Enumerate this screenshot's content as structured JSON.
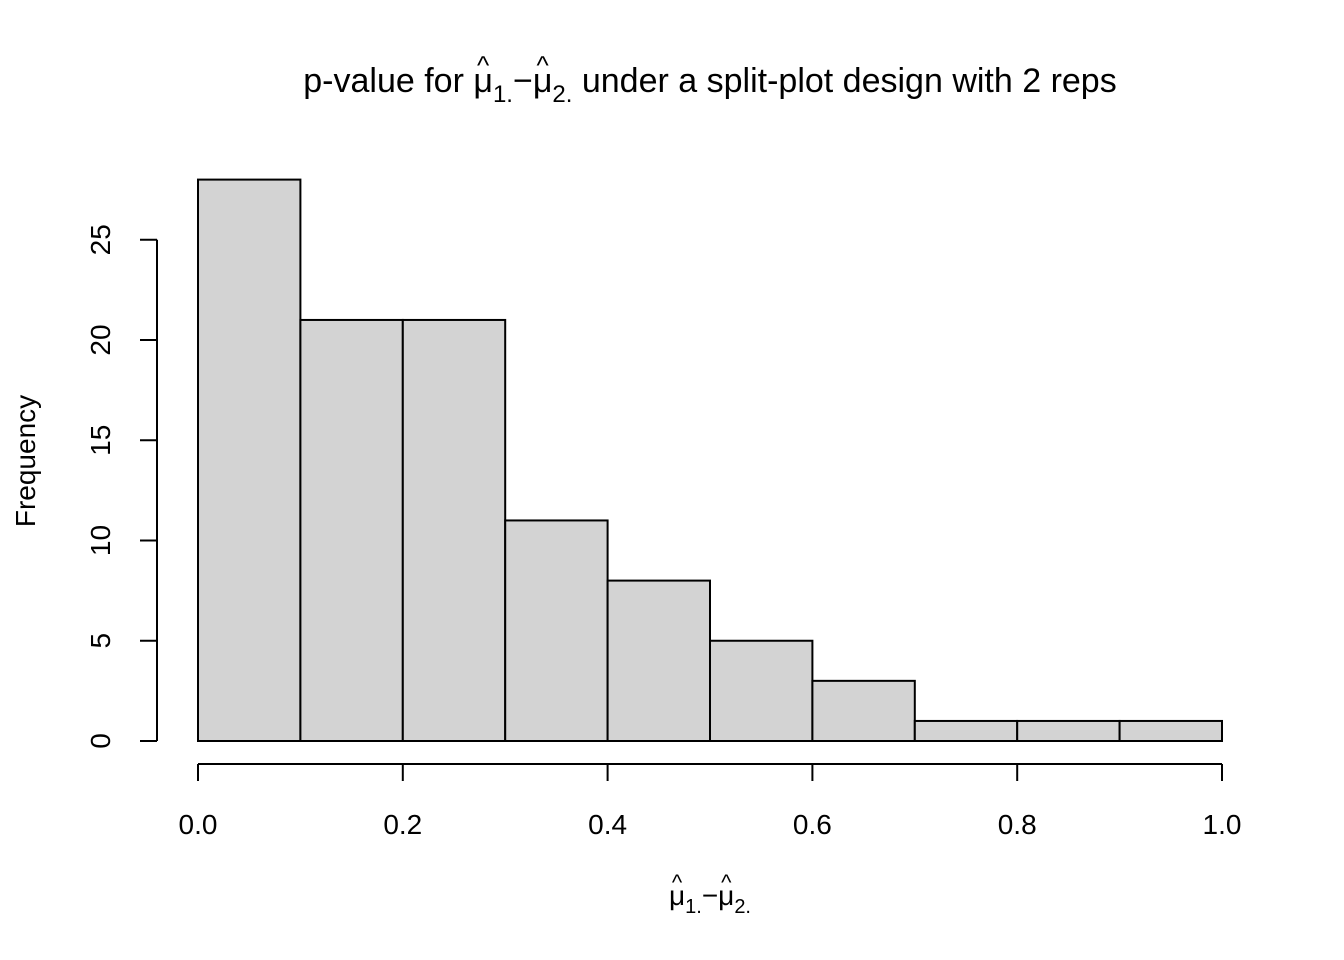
{
  "chart_data": {
    "type": "bar",
    "subtype": "histogram",
    "title": {
      "prefix": "p-value for ",
      "expr": {
        "mu": "μ",
        "hat": "^",
        "sub1": "1.",
        "minus": "−",
        "sub2": "2."
      },
      "suffix": " under a split-plot design with 2 reps"
    },
    "xlabel": {
      "mu": "μ",
      "hat": "^",
      "sub1": "1.",
      "minus": "−",
      "sub2": "2."
    },
    "ylabel": "Frequency",
    "bins": [
      {
        "from": 0.0,
        "to": 0.1,
        "count": 28
      },
      {
        "from": 0.1,
        "to": 0.2,
        "count": 21
      },
      {
        "from": 0.2,
        "to": 0.3,
        "count": 21
      },
      {
        "from": 0.3,
        "to": 0.4,
        "count": 11
      },
      {
        "from": 0.4,
        "to": 0.5,
        "count": 8
      },
      {
        "from": 0.5,
        "to": 0.6,
        "count": 5
      },
      {
        "from": 0.6,
        "to": 0.7,
        "count": 3
      },
      {
        "from": 0.7,
        "to": 0.8,
        "count": 1
      },
      {
        "from": 0.8,
        "to": 0.9,
        "count": 1
      },
      {
        "from": 0.9,
        "to": 1.0,
        "count": 1
      }
    ],
    "xlim": [
      0,
      1
    ],
    "ylim": [
      0,
      28
    ],
    "xticks": [
      {
        "value": 0.0,
        "label": "0.0"
      },
      {
        "value": 0.2,
        "label": "0.2"
      },
      {
        "value": 0.4,
        "label": "0.4"
      },
      {
        "value": 0.6,
        "label": "0.6"
      },
      {
        "value": 0.8,
        "label": "0.8"
      },
      {
        "value": 1.0,
        "label": "1.0"
      }
    ],
    "yticks": [
      {
        "value": 0,
        "label": "0"
      },
      {
        "value": 5,
        "label": "5"
      },
      {
        "value": 10,
        "label": "10"
      },
      {
        "value": 15,
        "label": "15"
      },
      {
        "value": 20,
        "label": "20"
      },
      {
        "value": 25,
        "label": "25"
      }
    ],
    "bar_color": "#d3d3d3",
    "edge_color": "#000000",
    "grid": false,
    "legend": "none"
  }
}
